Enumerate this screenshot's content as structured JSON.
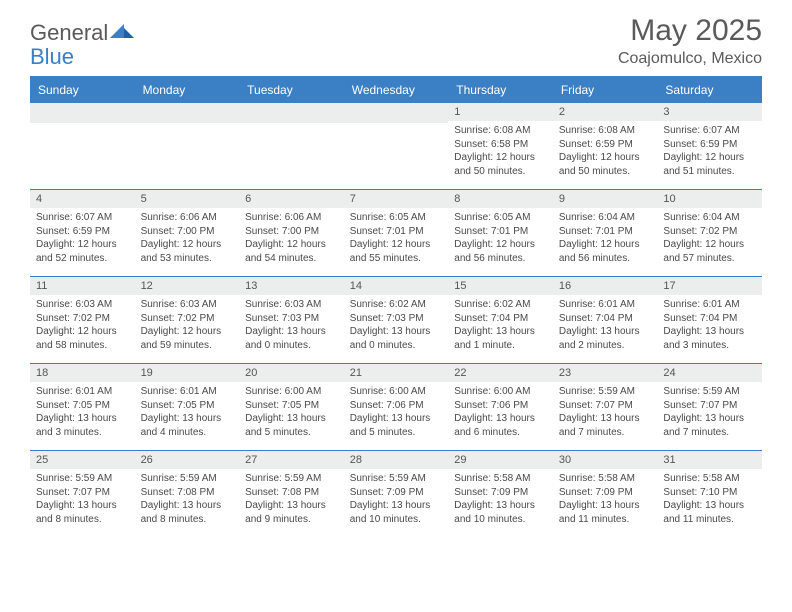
{
  "brand": {
    "part1": "General",
    "part2": "Blue"
  },
  "title": "May 2025",
  "location": "Coajomulco, Mexico",
  "colors": {
    "accent": "#3b7fc4",
    "header_text": "#ffffff",
    "date_bg": "#eceded",
    "body_text": "#4a4a4a",
    "title_text": "#5a5a5a"
  },
  "dayNames": [
    "Sunday",
    "Monday",
    "Tuesday",
    "Wednesday",
    "Thursday",
    "Friday",
    "Saturday"
  ],
  "weeks": [
    [
      {
        "date": "",
        "sunrise": "",
        "sunset": "",
        "daylight": ""
      },
      {
        "date": "",
        "sunrise": "",
        "sunset": "",
        "daylight": ""
      },
      {
        "date": "",
        "sunrise": "",
        "sunset": "",
        "daylight": ""
      },
      {
        "date": "",
        "sunrise": "",
        "sunset": "",
        "daylight": ""
      },
      {
        "date": "1",
        "sunrise": "6:08 AM",
        "sunset": "6:58 PM",
        "daylight": "12 hours and 50 minutes."
      },
      {
        "date": "2",
        "sunrise": "6:08 AM",
        "sunset": "6:59 PM",
        "daylight": "12 hours and 50 minutes."
      },
      {
        "date": "3",
        "sunrise": "6:07 AM",
        "sunset": "6:59 PM",
        "daylight": "12 hours and 51 minutes."
      }
    ],
    [
      {
        "date": "4",
        "sunrise": "6:07 AM",
        "sunset": "6:59 PM",
        "daylight": "12 hours and 52 minutes."
      },
      {
        "date": "5",
        "sunrise": "6:06 AM",
        "sunset": "7:00 PM",
        "daylight": "12 hours and 53 minutes."
      },
      {
        "date": "6",
        "sunrise": "6:06 AM",
        "sunset": "7:00 PM",
        "daylight": "12 hours and 54 minutes."
      },
      {
        "date": "7",
        "sunrise": "6:05 AM",
        "sunset": "7:01 PM",
        "daylight": "12 hours and 55 minutes."
      },
      {
        "date": "8",
        "sunrise": "6:05 AM",
        "sunset": "7:01 PM",
        "daylight": "12 hours and 56 minutes."
      },
      {
        "date": "9",
        "sunrise": "6:04 AM",
        "sunset": "7:01 PM",
        "daylight": "12 hours and 56 minutes."
      },
      {
        "date": "10",
        "sunrise": "6:04 AM",
        "sunset": "7:02 PM",
        "daylight": "12 hours and 57 minutes."
      }
    ],
    [
      {
        "date": "11",
        "sunrise": "6:03 AM",
        "sunset": "7:02 PM",
        "daylight": "12 hours and 58 minutes."
      },
      {
        "date": "12",
        "sunrise": "6:03 AM",
        "sunset": "7:02 PM",
        "daylight": "12 hours and 59 minutes."
      },
      {
        "date": "13",
        "sunrise": "6:03 AM",
        "sunset": "7:03 PM",
        "daylight": "13 hours and 0 minutes."
      },
      {
        "date": "14",
        "sunrise": "6:02 AM",
        "sunset": "7:03 PM",
        "daylight": "13 hours and 0 minutes."
      },
      {
        "date": "15",
        "sunrise": "6:02 AM",
        "sunset": "7:04 PM",
        "daylight": "13 hours and 1 minute."
      },
      {
        "date": "16",
        "sunrise": "6:01 AM",
        "sunset": "7:04 PM",
        "daylight": "13 hours and 2 minutes."
      },
      {
        "date": "17",
        "sunrise": "6:01 AM",
        "sunset": "7:04 PM",
        "daylight": "13 hours and 3 minutes."
      }
    ],
    [
      {
        "date": "18",
        "sunrise": "6:01 AM",
        "sunset": "7:05 PM",
        "daylight": "13 hours and 3 minutes."
      },
      {
        "date": "19",
        "sunrise": "6:01 AM",
        "sunset": "7:05 PM",
        "daylight": "13 hours and 4 minutes."
      },
      {
        "date": "20",
        "sunrise": "6:00 AM",
        "sunset": "7:05 PM",
        "daylight": "13 hours and 5 minutes."
      },
      {
        "date": "21",
        "sunrise": "6:00 AM",
        "sunset": "7:06 PM",
        "daylight": "13 hours and 5 minutes."
      },
      {
        "date": "22",
        "sunrise": "6:00 AM",
        "sunset": "7:06 PM",
        "daylight": "13 hours and 6 minutes."
      },
      {
        "date": "23",
        "sunrise": "5:59 AM",
        "sunset": "7:07 PM",
        "daylight": "13 hours and 7 minutes."
      },
      {
        "date": "24",
        "sunrise": "5:59 AM",
        "sunset": "7:07 PM",
        "daylight": "13 hours and 7 minutes."
      }
    ],
    [
      {
        "date": "25",
        "sunrise": "5:59 AM",
        "sunset": "7:07 PM",
        "daylight": "13 hours and 8 minutes."
      },
      {
        "date": "26",
        "sunrise": "5:59 AM",
        "sunset": "7:08 PM",
        "daylight": "13 hours and 8 minutes."
      },
      {
        "date": "27",
        "sunrise": "5:59 AM",
        "sunset": "7:08 PM",
        "daylight": "13 hours and 9 minutes."
      },
      {
        "date": "28",
        "sunrise": "5:59 AM",
        "sunset": "7:09 PM",
        "daylight": "13 hours and 10 minutes."
      },
      {
        "date": "29",
        "sunrise": "5:58 AM",
        "sunset": "7:09 PM",
        "daylight": "13 hours and 10 minutes."
      },
      {
        "date": "30",
        "sunrise": "5:58 AM",
        "sunset": "7:09 PM",
        "daylight": "13 hours and 11 minutes."
      },
      {
        "date": "31",
        "sunrise": "5:58 AM",
        "sunset": "7:10 PM",
        "daylight": "13 hours and 11 minutes."
      }
    ]
  ],
  "labels": {
    "sunrise": "Sunrise:",
    "sunset": "Sunset:",
    "daylight": "Daylight:"
  }
}
